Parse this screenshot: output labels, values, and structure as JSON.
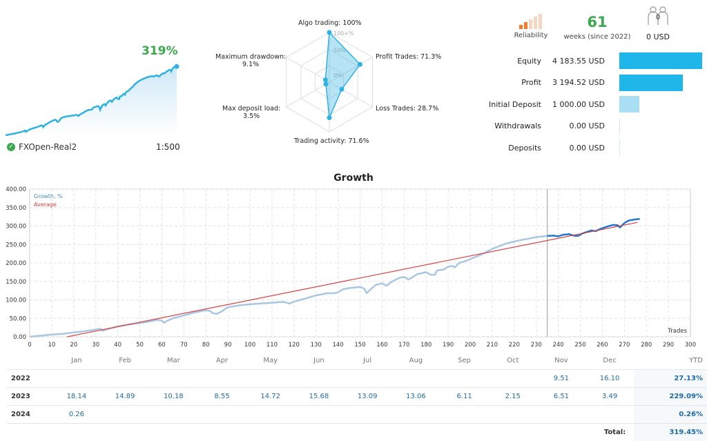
{
  "summary": {
    "growth_pct": "319%",
    "account_name": "FXOpen-Real2",
    "leverage": "1:500"
  },
  "radar": {
    "labels": [
      {
        "key": "algo",
        "text": "Algo trading: 100%",
        "value": 100
      },
      {
        "key": "profit",
        "text": "Profit Trades: 71.3%",
        "value": 71.3
      },
      {
        "key": "loss",
        "text": "Loss Trades: 28.7%",
        "value": 28.7
      },
      {
        "key": "activity",
        "text": "Trading activity: 71.6%",
        "value": 71.6
      },
      {
        "key": "load",
        "text": "Max deposit load:\n3.5%",
        "value": 3.5
      },
      {
        "key": "drawdown",
        "text": "Maximum drawdown:\n9.1%",
        "value": 9.1
      }
    ],
    "ring_labels": [
      "100+%",
      "50%",
      "0%"
    ]
  },
  "stats": {
    "reliability_label": "Reliability",
    "weeks_value": "61",
    "weeks_label": "weeks (since 2022)",
    "subscribers_value": "0",
    "subscribers_funds": "0 USD",
    "colors": {
      "bar_dark": "#1fb6ea",
      "bar_light": "#a9dff4",
      "rel_on": "#f07d2e",
      "rel_off": "#f6d6c1"
    }
  },
  "financials": [
    {
      "label": "Equity",
      "value": "4 183.55 USD",
      "amount": 4183.55
    },
    {
      "label": "Profit",
      "value": "3 194.52 USD",
      "amount": 3194.52
    },
    {
      "label": "Initial Deposit",
      "value": "1 000.00 USD",
      "amount": 1000.0
    },
    {
      "label": "Withdrawals",
      "value": "0.00 USD",
      "amount": 0
    },
    {
      "label": "Deposits",
      "value": "0.00 USD",
      "amount": 0
    }
  ],
  "chart_data": {
    "type": "line",
    "title": "Growth",
    "xlabel": "Trades",
    "ylabel": "",
    "xlim": [
      0,
      300
    ],
    "ylim": [
      0,
      400
    ],
    "x_ticks": [
      0,
      10,
      20,
      30,
      40,
      50,
      60,
      70,
      80,
      90,
      100,
      110,
      120,
      130,
      140,
      150,
      160,
      170,
      180,
      190,
      200,
      210,
      220,
      230,
      240,
      250,
      260,
      270,
      280,
      290,
      300
    ],
    "y_ticks": [
      "0.00",
      "50.00",
      "100.00",
      "150.00",
      "200.00",
      "250.00",
      "300.00",
      "350.00",
      "400.00"
    ],
    "legend": [
      "Growth, %",
      "Average"
    ],
    "legend_position": "top-left",
    "grid": true,
    "marker_x": 235,
    "series": [
      {
        "name": "Growth, %",
        "color": "#a9c6e2",
        "points": [
          [
            0,
            0
          ],
          [
            5,
            3
          ],
          [
            10,
            6
          ],
          [
            15,
            8
          ],
          [
            20,
            12
          ],
          [
            25,
            15
          ],
          [
            30,
            20
          ],
          [
            32,
            22
          ],
          [
            33,
            16
          ],
          [
            35,
            20
          ],
          [
            40,
            28
          ],
          [
            45,
            33
          ],
          [
            50,
            37
          ],
          [
            55,
            42
          ],
          [
            58,
            46
          ],
          [
            60,
            44
          ],
          [
            61,
            38
          ],
          [
            62,
            42
          ],
          [
            65,
            50
          ],
          [
            70,
            58
          ],
          [
            75,
            66
          ],
          [
            80,
            72
          ],
          [
            82,
            70
          ],
          [
            83,
            64
          ],
          [
            85,
            62
          ],
          [
            87,
            68
          ],
          [
            90,
            80
          ],
          [
            95,
            85
          ],
          [
            100,
            88
          ],
          [
            105,
            90
          ],
          [
            110,
            92
          ],
          [
            115,
            95
          ],
          [
            118,
            90
          ],
          [
            120,
            95
          ],
          [
            123,
            100
          ],
          [
            126,
            105
          ],
          [
            130,
            112
          ],
          [
            135,
            118
          ],
          [
            138,
            118
          ],
          [
            140,
            120
          ],
          [
            142,
            128
          ],
          [
            145,
            132
          ],
          [
            150,
            135
          ],
          [
            152,
            130
          ],
          [
            153,
            118
          ],
          [
            155,
            130
          ],
          [
            157,
            140
          ],
          [
            160,
            145
          ],
          [
            162,
            138
          ],
          [
            164,
            148
          ],
          [
            168,
            160
          ],
          [
            170,
            162
          ],
          [
            172,
            155
          ],
          [
            174,
            162
          ],
          [
            176,
            170
          ],
          [
            178,
            172
          ],
          [
            180,
            175
          ],
          [
            182,
            168
          ],
          [
            184,
            168
          ],
          [
            185,
            180
          ],
          [
            188,
            182
          ],
          [
            190,
            190
          ],
          [
            192,
            192
          ],
          [
            193,
            188
          ],
          [
            195,
            200
          ],
          [
            198,
            205
          ],
          [
            200,
            210
          ],
          [
            203,
            218
          ],
          [
            206,
            225
          ],
          [
            208,
            232
          ],
          [
            210,
            238
          ],
          [
            213,
            245
          ],
          [
            216,
            252
          ],
          [
            220,
            258
          ],
          [
            223,
            262
          ],
          [
            226,
            265
          ],
          [
            230,
            270
          ],
          [
            233,
            272
          ],
          [
            235,
            273
          ]
        ]
      },
      {
        "name": "Growth, % (recent)",
        "color": "#2277cc",
        "points": [
          [
            235,
            273
          ],
          [
            238,
            274
          ],
          [
            240,
            272
          ],
          [
            242,
            276
          ],
          [
            245,
            278
          ],
          [
            247,
            274
          ],
          [
            249,
            273
          ],
          [
            251,
            280
          ],
          [
            253,
            284
          ],
          [
            255,
            288
          ],
          [
            257,
            286
          ],
          [
            259,
            292
          ],
          [
            261,
            296
          ],
          [
            263,
            300
          ],
          [
            265,
            303
          ],
          [
            267,
            302
          ],
          [
            268,
            296
          ],
          [
            270,
            308
          ],
          [
            272,
            315
          ],
          [
            275,
            318
          ],
          [
            277,
            319
          ]
        ]
      },
      {
        "name": "Average",
        "color": "#d94040",
        "points": [
          [
            17,
            0
          ],
          [
            276,
            310
          ]
        ]
      }
    ]
  },
  "table": {
    "months": [
      "Jan",
      "Feb",
      "Mar",
      "Apr",
      "May",
      "Jun",
      "Jul",
      "Aug",
      "Sep",
      "Oct",
      "Nov",
      "Dec"
    ],
    "ytd_header": "YTD",
    "rows": [
      {
        "year": "2022",
        "values": [
          "",
          "",
          "",
          "",
          "",
          "",
          "",
          "",
          "",
          "",
          "9.51",
          "16.10"
        ],
        "ytd": "27.13%"
      },
      {
        "year": "2023",
        "values": [
          "18.14",
          "14.89",
          "10.18",
          "8.55",
          "14.72",
          "15.68",
          "13.09",
          "13.06",
          "6.11",
          "2.15",
          "6.51",
          "3.49"
        ],
        "ytd": "229.09%"
      },
      {
        "year": "2024",
        "values": [
          "0.26",
          "",
          "",
          "",
          "",
          "",
          "",
          "",
          "",
          "",
          "",
          ""
        ],
        "ytd": "0.26%"
      }
    ],
    "total_label": "Total:",
    "total_value": "319.45%"
  }
}
